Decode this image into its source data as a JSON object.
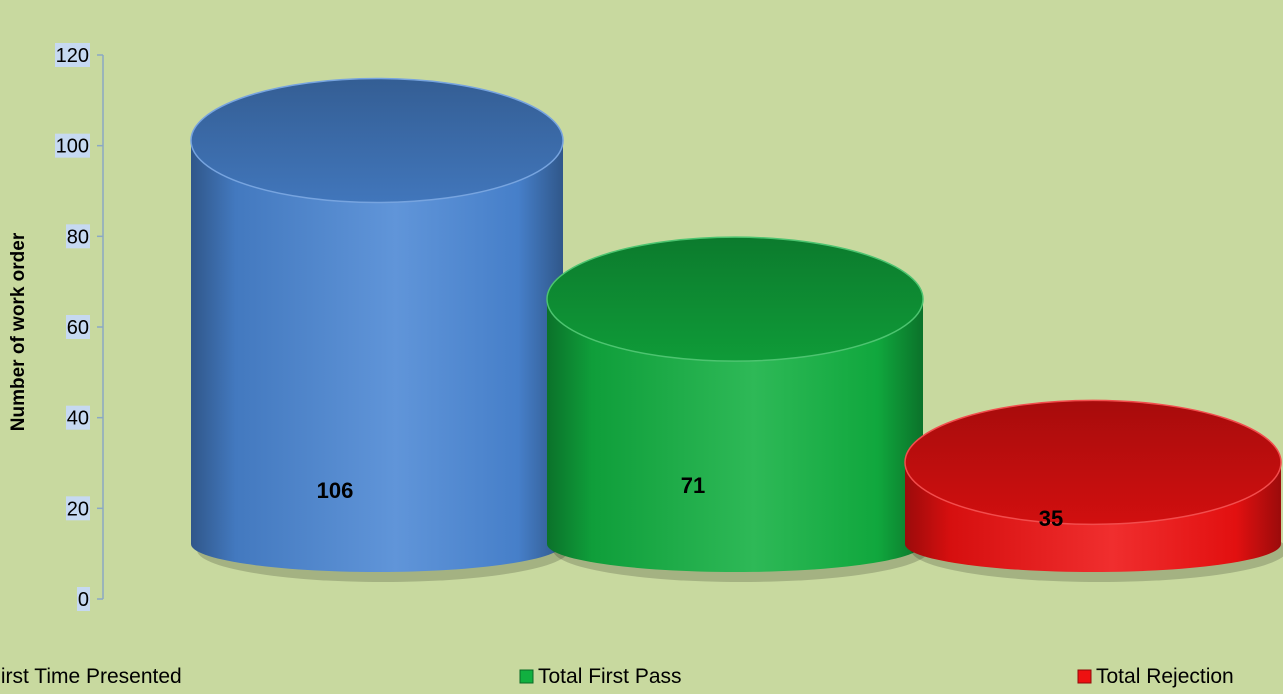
{
  "chart_data": {
    "type": "bar",
    "style": "3d-cylinder",
    "title": "",
    "xlabel": "",
    "ylabel": "Number of work order",
    "ylim": [
      0,
      120
    ],
    "yticks": [
      0,
      20,
      40,
      60,
      80,
      100,
      120
    ],
    "grid": false,
    "legend_position": "bottom",
    "series": [
      {
        "name": "First Time Presented",
        "value": 106,
        "color": "#4a86d4"
      },
      {
        "name": "Total First Pass",
        "value": 71,
        "color": "#11b040"
      },
      {
        "name": "Total Rejection",
        "value": 35,
        "color": "#ee1111"
      }
    ]
  }
}
